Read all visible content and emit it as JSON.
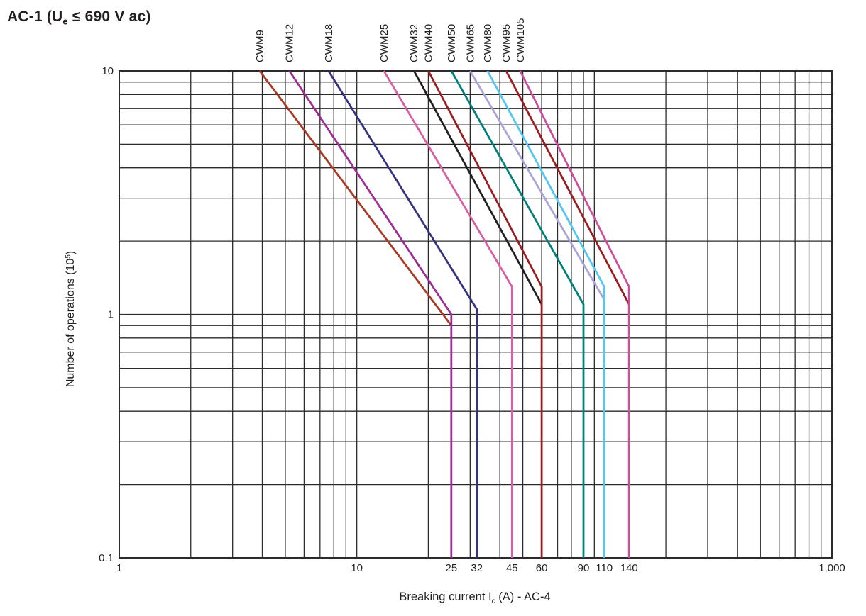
{
  "page": {
    "title": {
      "prefix": "AC-1 (U",
      "sub": "e",
      "suffix": " ≤ 690 V ac)"
    }
  },
  "chart_data": {
    "type": "line",
    "scale": "log-log",
    "grid": {
      "minor": true,
      "color": "#2e2a2b"
    },
    "curve_labels_position": "top-rotated",
    "x_axis": {
      "label": {
        "prefix": "Breaking current I",
        "sub": "c",
        "suffix": " (A) - AC-4"
      },
      "scale": "log",
      "min": 1,
      "max": 1000,
      "tick_labels": [
        {
          "value": 1,
          "label": "1"
        },
        {
          "value": 10,
          "label": "10"
        },
        {
          "value": 25,
          "label": "25"
        },
        {
          "value": 32,
          "label": "32"
        },
        {
          "value": 45,
          "label": "45"
        },
        {
          "value": 60,
          "label": "60"
        },
        {
          "value": 90,
          "label": "90"
        },
        {
          "value": 110,
          "label": "110"
        },
        {
          "value": 140,
          "label": "140"
        },
        {
          "value": 1000,
          "label": "1,000"
        }
      ]
    },
    "y_axis": {
      "label": {
        "prefix": "Number of operations (10",
        "sup": "5",
        "suffix": ")"
      },
      "scale": "log",
      "min": 0.1,
      "max": 10,
      "tick_labels": [
        {
          "value": 10,
          "label": "10"
        },
        {
          "value": 1,
          "label": "1"
        },
        {
          "value": 0.1,
          "label": "0.1"
        }
      ]
    },
    "series": [
      {
        "name": "CWM9",
        "color": "#A93B25",
        "points": [
          [
            3.9,
            10
          ],
          [
            25,
            0.9
          ]
        ]
      },
      {
        "name": "CWM12",
        "color": "#9B2F98",
        "points": [
          [
            5.2,
            10
          ],
          [
            25,
            1.0
          ],
          [
            25,
            0.1
          ]
        ]
      },
      {
        "name": "CWM18",
        "color": "#333380",
        "points": [
          [
            7.6,
            10
          ],
          [
            32,
            1.05
          ],
          [
            32,
            0.1
          ]
        ]
      },
      {
        "name": "CWM25",
        "color": "#D75FA6",
        "points": [
          [
            13,
            10
          ],
          [
            45,
            1.3
          ],
          [
            45,
            0.1
          ]
        ]
      },
      {
        "name": "CWM32",
        "color": "#231F20",
        "points": [
          [
            17.4,
            10
          ],
          [
            60,
            1.1
          ]
        ]
      },
      {
        "name": "CWM40",
        "color": "#9B1D21",
        "points": [
          [
            20,
            10
          ],
          [
            60,
            1.3
          ],
          [
            60,
            0.1
          ]
        ]
      },
      {
        "name": "CWM50",
        "color": "#00807C",
        "points": [
          [
            25,
            10
          ],
          [
            90,
            1.1
          ],
          [
            90,
            0.1
          ]
        ]
      },
      {
        "name": "CWM65",
        "color": "#ACA5DA",
        "points": [
          [
            30,
            10
          ],
          [
            110,
            1.15
          ]
        ]
      },
      {
        "name": "CWM80",
        "color": "#53C7F1",
        "points": [
          [
            35.5,
            10
          ],
          [
            110,
            1.3
          ],
          [
            110,
            0.1
          ]
        ]
      },
      {
        "name": "CWM95",
        "color": "#9B1D21",
        "points": [
          [
            42.5,
            10
          ],
          [
            140,
            1.1
          ]
        ]
      },
      {
        "name": "CWM105",
        "color": "#CB4E9D",
        "points": [
          [
            48.7,
            10
          ],
          [
            140,
            1.3
          ],
          [
            140,
            0.1
          ]
        ]
      }
    ]
  }
}
